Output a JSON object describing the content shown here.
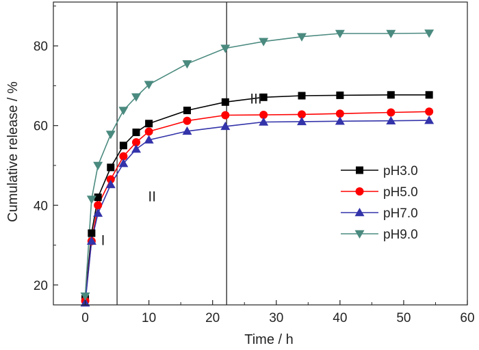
{
  "chart_data": {
    "type": "line",
    "title": "",
    "xlabel": "Time / h",
    "ylabel": "Cumulative release / %",
    "xlim": [
      -5,
      60
    ],
    "ylim": [
      15,
      91
    ],
    "x_ticks": [
      0,
      10,
      20,
      30,
      40,
      50,
      60
    ],
    "y_ticks": [
      20,
      40,
      60,
      80
    ],
    "grid": false,
    "legend_position": "center-right",
    "x": [
      0,
      1,
      2,
      4,
      6,
      8,
      10,
      16,
      22,
      28,
      34,
      40,
      48,
      54
    ],
    "series": [
      {
        "name": "pH3.0",
        "color": "#000000",
        "marker": "square",
        "values": [
          16.5,
          33,
          42,
          49.5,
          55,
          58.3,
          60.5,
          63.8,
          65.9,
          67.1,
          67.5,
          67.6,
          67.7,
          67.7
        ]
      },
      {
        "name": "pH5.0",
        "color": "#ff0000",
        "marker": "circle",
        "values": [
          16,
          31,
          40,
          46.5,
          52.3,
          55.8,
          58.5,
          61.2,
          62.6,
          62.7,
          62.8,
          63,
          63.3,
          63.5
        ]
      },
      {
        "name": "pH7.0",
        "color": "#3333aa",
        "marker": "triangle-up",
        "values": [
          15.5,
          31,
          38,
          45.2,
          50.5,
          54.1,
          56.4,
          58.6,
          59.8,
          60.9,
          61,
          61.1,
          61.2,
          61.3
        ]
      },
      {
        "name": "pH9.0",
        "color": "#4a8a7f",
        "marker": "triangle-down",
        "values": [
          17.2,
          41.5,
          50,
          57.8,
          63.8,
          67.2,
          70.3,
          75.5,
          79.4,
          81.1,
          82.3,
          83.1,
          83.1,
          83.2
        ]
      }
    ],
    "vertical_lines_x": [
      5,
      22.2
    ],
    "region_labels": [
      {
        "text": "I",
        "x": 2.8,
        "y": 30
      },
      {
        "text": "II",
        "x": 10.5,
        "y": 41
      },
      {
        "text": "III",
        "x": 26.8,
        "y": 65.5
      }
    ]
  }
}
